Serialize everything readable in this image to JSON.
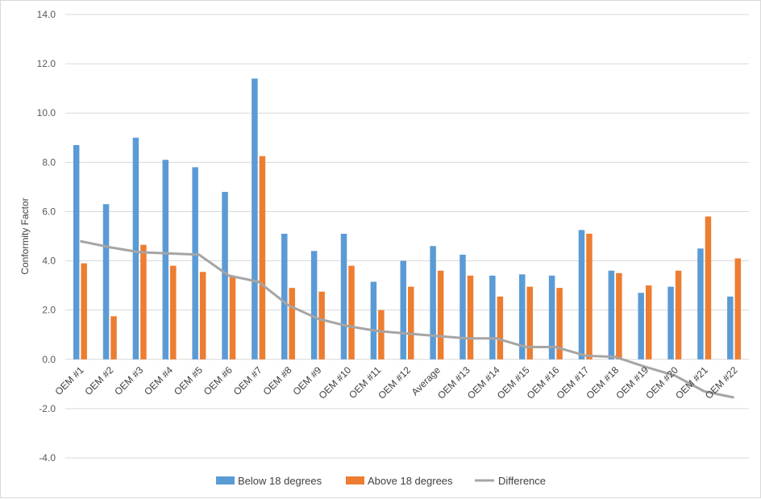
{
  "chart_data": {
    "type": "bar",
    "title": "",
    "xlabel": "",
    "ylabel": "Conformity Factor",
    "ylim": [
      -4.0,
      14.0
    ],
    "y_ticks": [
      "-4.0",
      "-2.0",
      "0.0",
      "2.0",
      "4.0",
      "6.0",
      "8.0",
      "10.0",
      "12.0",
      "14.0"
    ],
    "grid": true,
    "legend_position": "bottom",
    "categories": [
      "OEM #1",
      "OEM #2",
      "OEM #3",
      "OEM #4",
      "OEM #5",
      "OEM #6",
      "OEM #7",
      "OEM #8",
      "OEM #9",
      "OEM #10",
      "OEM #11",
      "OEM #12",
      "Average",
      "OEM #13",
      "OEM #14",
      "OEM #15",
      "OEM #16",
      "OEM #17",
      "OEM #18",
      "OEM #19",
      "OEM #20",
      "OEM #21",
      "OEM #22"
    ],
    "series": [
      {
        "name": "Below 18 degrees",
        "type": "bar",
        "color": "#5b9bd5",
        "values": [
          8.7,
          6.3,
          9.0,
          8.1,
          7.8,
          6.8,
          11.4,
          5.1,
          4.4,
          5.1,
          3.15,
          4.0,
          4.6,
          4.25,
          3.4,
          3.45,
          3.4,
          5.25,
          3.6,
          2.7,
          2.95,
          4.5,
          2.55
        ]
      },
      {
        "name": "Above 18 degrees",
        "type": "bar",
        "color": "#ed7d31",
        "values": [
          3.9,
          1.75,
          4.65,
          3.8,
          3.55,
          3.4,
          8.25,
          2.9,
          2.75,
          3.8,
          2.0,
          2.95,
          3.6,
          3.4,
          2.55,
          2.95,
          2.9,
          5.1,
          3.5,
          3.0,
          3.6,
          5.8,
          4.1
        ]
      },
      {
        "name": "Difference",
        "type": "line",
        "color": "#a5a5a5",
        "values": [
          4.8,
          4.55,
          4.35,
          4.3,
          4.25,
          3.4,
          3.15,
          2.2,
          1.65,
          1.35,
          1.15,
          1.05,
          0.95,
          0.85,
          0.85,
          0.5,
          0.5,
          0.15,
          0.1,
          -0.3,
          -0.65,
          -1.3,
          -1.55
        ]
      }
    ]
  }
}
